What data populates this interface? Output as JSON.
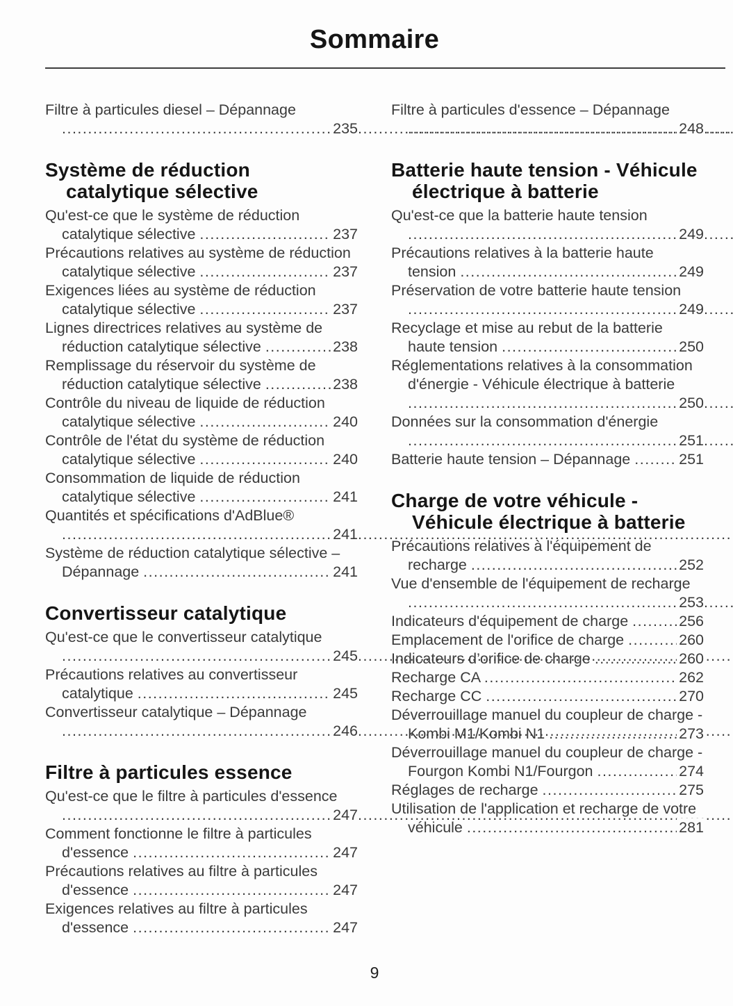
{
  "header": {
    "title": "Sommaire"
  },
  "footer": {
    "page_number": "9"
  },
  "colors": {
    "background": "#fdfdfd",
    "body_text": "#3a3a3a",
    "heading_text": "#151515"
  },
  "toc": {
    "columns": [
      {
        "blocks": [
          {
            "type": "entry",
            "label": "Filtre à particules diesel – Dépannage",
            "page": "235"
          },
          {
            "type": "heading",
            "text": "Système de réduction catalytique sélective"
          },
          {
            "type": "entry",
            "label": "Qu'est-ce que le système de réduction catalytique sélective",
            "page": "237"
          },
          {
            "type": "entry",
            "label": "Précautions relatives au système de réduction catalytique sélective",
            "page": "237"
          },
          {
            "type": "entry",
            "label": "Exigences liées au système de réduction catalytique sélective",
            "page": "237"
          },
          {
            "type": "entry",
            "label": "Lignes directrices relatives au système de réduction catalytique sélective",
            "page": "238"
          },
          {
            "type": "entry",
            "label": "Remplissage du réservoir du système de réduction catalytique sélective",
            "page": "238"
          },
          {
            "type": "entry",
            "label": "Contrôle du niveau de liquide de réduction catalytique sélective",
            "page": "240"
          },
          {
            "type": "entry",
            "label": "Contrôle de l'état du système de réduction catalytique sélective",
            "page": "240"
          },
          {
            "type": "entry",
            "label": "Consommation de liquide de réduction catalytique sélective",
            "page": "241"
          },
          {
            "type": "entry",
            "label": "Quantités et spécifications d'AdBlue®",
            "page": "241"
          },
          {
            "type": "entry",
            "label": "Système de réduction catalytique sélective – Dépannage",
            "page": "241"
          },
          {
            "type": "heading",
            "text": "Convertisseur catalytique"
          },
          {
            "type": "entry",
            "label": "Qu'est-ce que le convertisseur catalytique",
            "page": "245"
          },
          {
            "type": "entry",
            "label": "Précautions relatives au convertisseur catalytique",
            "page": "245"
          },
          {
            "type": "entry",
            "label": "Convertisseur catalytique – Dépannage",
            "page": "246"
          },
          {
            "type": "heading",
            "text": "Filtre à particules essence"
          },
          {
            "type": "entry",
            "label": "Qu'est-ce que le filtre à particules d'essence",
            "page": "247"
          },
          {
            "type": "entry",
            "label": "Comment fonctionne le filtre à particules d'essence",
            "page": "247"
          },
          {
            "type": "entry",
            "label": "Précautions relatives au filtre à particules d'essence",
            "page": "247"
          },
          {
            "type": "entry",
            "label": "Exigences relatives au filtre à particules d'essence",
            "page": "247"
          }
        ]
      },
      {
        "blocks": [
          {
            "type": "entry",
            "label": "Filtre à particules d'essence – Dépannage",
            "page": "248"
          },
          {
            "type": "heading",
            "text": "Batterie haute tension - Véhicule électrique à batterie"
          },
          {
            "type": "entry",
            "label": "Qu'est-ce que la batterie haute tension",
            "page": "249"
          },
          {
            "type": "entry",
            "label": "Précautions relatives à la batterie haute tension",
            "page": "249"
          },
          {
            "type": "entry",
            "label": "Préservation de votre batterie haute tension",
            "page": "249"
          },
          {
            "type": "entry",
            "label": "Recyclage et mise au rebut de la batterie haute tension",
            "page": "250"
          },
          {
            "type": "entry",
            "label": "Réglementations relatives à la consommation d'énergie - Véhicule électrique à batterie",
            "page": "250"
          },
          {
            "type": "entry",
            "label": "Données sur la consommation d'énergie",
            "page": "251"
          },
          {
            "type": "entry",
            "label": "Batterie haute tension – Dépannage",
            "page": "251"
          },
          {
            "type": "heading",
            "text": "Charge de votre véhicule - Véhicule électrique à batterie"
          },
          {
            "type": "entry",
            "label": "Précautions relatives à l'équipement de recharge",
            "page": "252"
          },
          {
            "type": "entry",
            "label": "Vue d'ensemble de l'équipement de recharge",
            "page": "253"
          },
          {
            "type": "entry",
            "label": "Indicateurs d'équipement de charge",
            "page": "256"
          },
          {
            "type": "entry",
            "label": "Emplacement de l'orifice de charge",
            "page": "260"
          },
          {
            "type": "entry",
            "label": "Indicateurs d’orifice de charge",
            "page": "260"
          },
          {
            "type": "entry",
            "label": "Recharge CA",
            "page": "262"
          },
          {
            "type": "entry",
            "label": "Recharge CC",
            "page": "270"
          },
          {
            "type": "entry",
            "label": "Déverrouillage manuel du coupleur de charge - Kombi M1/Kombi N1",
            "page": "273"
          },
          {
            "type": "entry",
            "label": "Déverrouillage manuel du coupleur de charge - Fourgon Kombi N1/Fourgon",
            "page": "274"
          },
          {
            "type": "entry",
            "label": "Réglages de recharge",
            "page": "275"
          },
          {
            "type": "entry",
            "label": "Utilisation de l'application et recharge de votre véhicule",
            "page": "281"
          }
        ]
      }
    ]
  }
}
